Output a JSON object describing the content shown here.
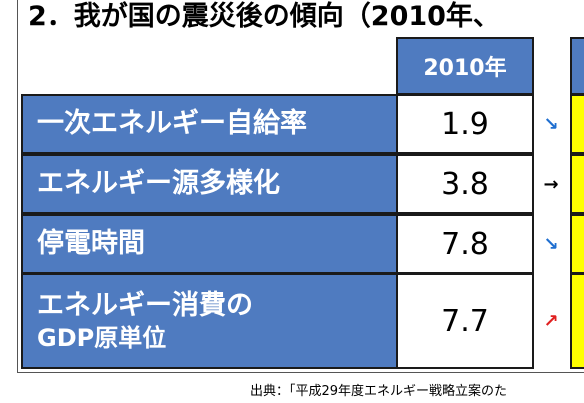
{
  "title": "2．我が国の震災後の傾向（2010年、",
  "table": {
    "header": "2010年",
    "rows": [
      {
        "label": "一次エネルギー自給率",
        "value": "1.9",
        "trend": "↘"
      },
      {
        "label": "エネルギー源多様化",
        "value": "3.8",
        "trend": "→"
      },
      {
        "label": "停電時間",
        "value": "7.8",
        "trend": "↘"
      },
      {
        "label": [
          "エネルギー消費の",
          "GDP原単位"
        ],
        "value": "7.7",
        "trend": "↗"
      }
    ]
  },
  "source": "出典：「平成29年度エネルギー戦略立案のた"
}
